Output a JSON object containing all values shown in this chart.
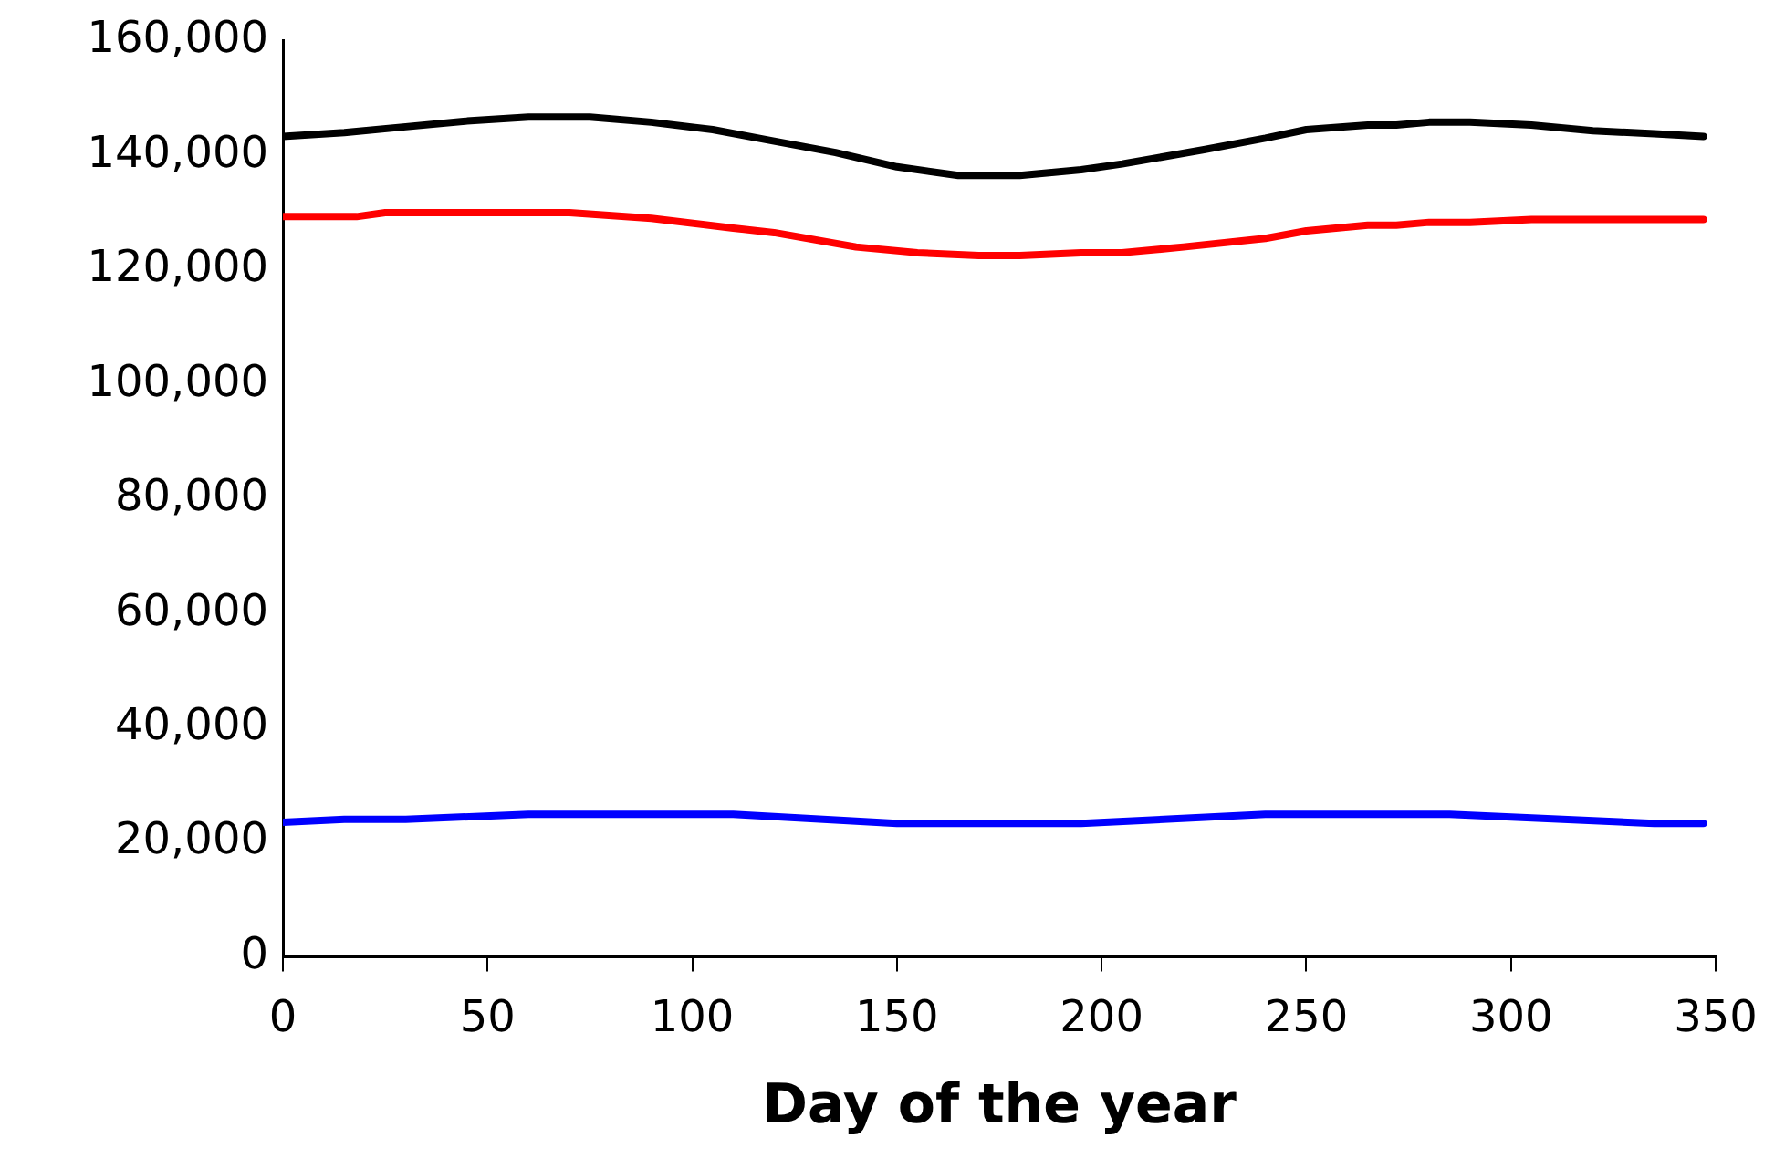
{
  "chart_data": {
    "type": "line",
    "xlabel": "Day of the year",
    "xlim": [
      0,
      350
    ],
    "xticks": [
      0,
      50,
      100,
      150,
      200,
      250,
      300,
      350
    ],
    "ylim": [
      0,
      160000
    ],
    "yticks": [
      {
        "value": 0,
        "label": "0"
      },
      {
        "value": 20000,
        "label": "20,000"
      },
      {
        "value": 40000,
        "label": "40,000"
      },
      {
        "value": 60000,
        "label": "60,000"
      },
      {
        "value": 80000,
        "label": "80,000"
      },
      {
        "value": 100000,
        "label": "100,000"
      },
      {
        "value": 120000,
        "label": "120,000"
      },
      {
        "value": 140000,
        "label": "140,000"
      },
      {
        "value": 160000,
        "label": "160,000"
      }
    ],
    "grid": false,
    "legend": false,
    "marker": "none",
    "line_style": "solid",
    "series": [
      {
        "color": "#000000",
        "x": [
          0,
          15,
          30,
          45,
          60,
          75,
          90,
          105,
          120,
          135,
          150,
          165,
          180,
          195,
          205,
          225,
          240,
          250,
          265,
          272,
          280,
          290,
          305,
          320,
          335,
          347
        ],
        "values": [
          143300,
          144000,
          145000,
          146000,
          146700,
          146700,
          145800,
          144500,
          142500,
          140500,
          138000,
          136500,
          136500,
          137500,
          138500,
          141000,
          143000,
          144500,
          145300,
          145300,
          145800,
          145800,
          145300,
          144300,
          143800,
          143300
        ]
      },
      {
        "color": "#ff0000",
        "x": [
          0,
          18,
          25,
          70,
          90,
          110,
          120,
          140,
          155,
          170,
          180,
          195,
          205,
          220,
          240,
          250,
          265,
          272,
          280,
          290,
          305,
          347
        ],
        "values": [
          129300,
          129300,
          130000,
          130000,
          129000,
          127300,
          126500,
          124000,
          123000,
          122500,
          122500,
          123000,
          123000,
          124000,
          125500,
          126800,
          127800,
          127800,
          128300,
          128300,
          128800,
          128800
        ]
      },
      {
        "color": "#0000ff",
        "x": [
          0,
          15,
          30,
          60,
          110,
          150,
          195,
          240,
          285,
          335,
          347
        ],
        "values": [
          23500,
          24000,
          24000,
          24900,
          24900,
          23300,
          23300,
          24900,
          24900,
          23300,
          23300
        ]
      }
    ]
  }
}
